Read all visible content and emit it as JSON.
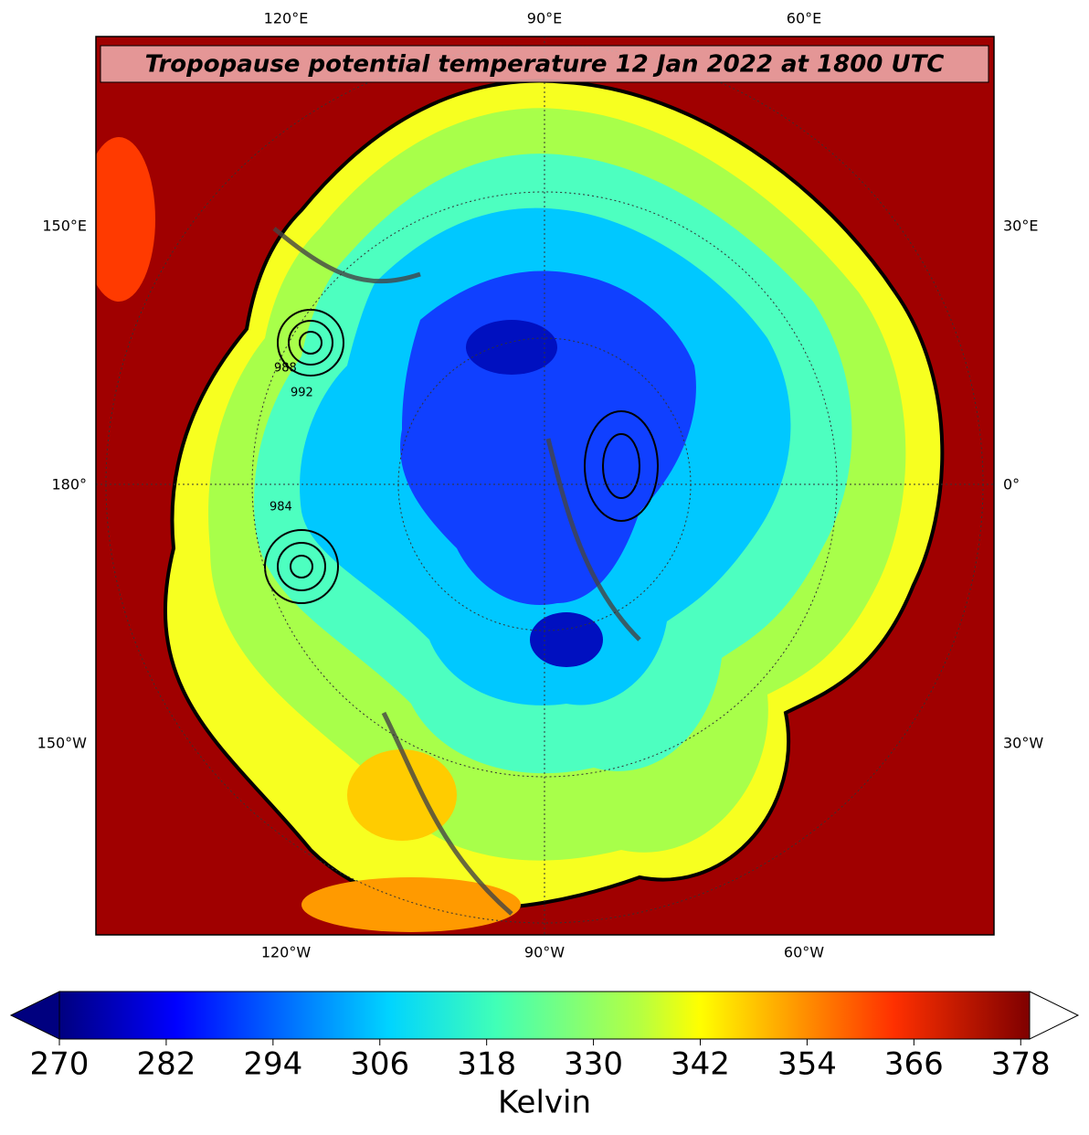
{
  "map": {
    "title": "Tropopause potential temperature 12 Jan 2022 at 1800 UTC",
    "top_labels": [
      "120°E",
      "90°E",
      "60°E"
    ],
    "bottom_labels": [
      "120°W",
      "90°W",
      "60°W"
    ],
    "left_labels": [
      "150°E",
      "180°",
      "150°W"
    ],
    "right_labels": [
      "30°E",
      "0°",
      "30°W"
    ],
    "contour_labels": [
      "988",
      "984",
      "992"
    ]
  },
  "colorbar": {
    "label": "Kelvin",
    "lim": [
      270,
      379
    ],
    "ticks": [
      270,
      282,
      294,
      306,
      318,
      330,
      342,
      354,
      366,
      378
    ]
  }
}
